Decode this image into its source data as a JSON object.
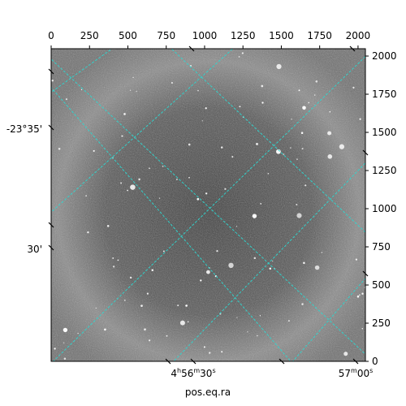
{
  "chart_data": {
    "type": "image",
    "x_pixel_ticks": [
      "0",
      "250",
      "500",
      "750",
      "1000",
      "1250",
      "1500",
      "1750",
      "2000"
    ],
    "y_pixel_ticks": [
      "0",
      "250",
      "500",
      "750",
      "1000",
      "1250",
      "1500",
      "1750",
      "2000"
    ],
    "pixel_range": [
      0,
      2048
    ],
    "ra_tick_labels": [
      {
        "h": "4",
        "m": "56",
        "s": "30"
      },
      {
        "h": "",
        "m": "57",
        "s": "00"
      }
    ],
    "dec_tick_labels": [
      "-23°35'",
      "30'"
    ],
    "xlabel": "pos.eq.ra",
    "grid_color": "#2fd6cf",
    "colormap": "gray"
  }
}
